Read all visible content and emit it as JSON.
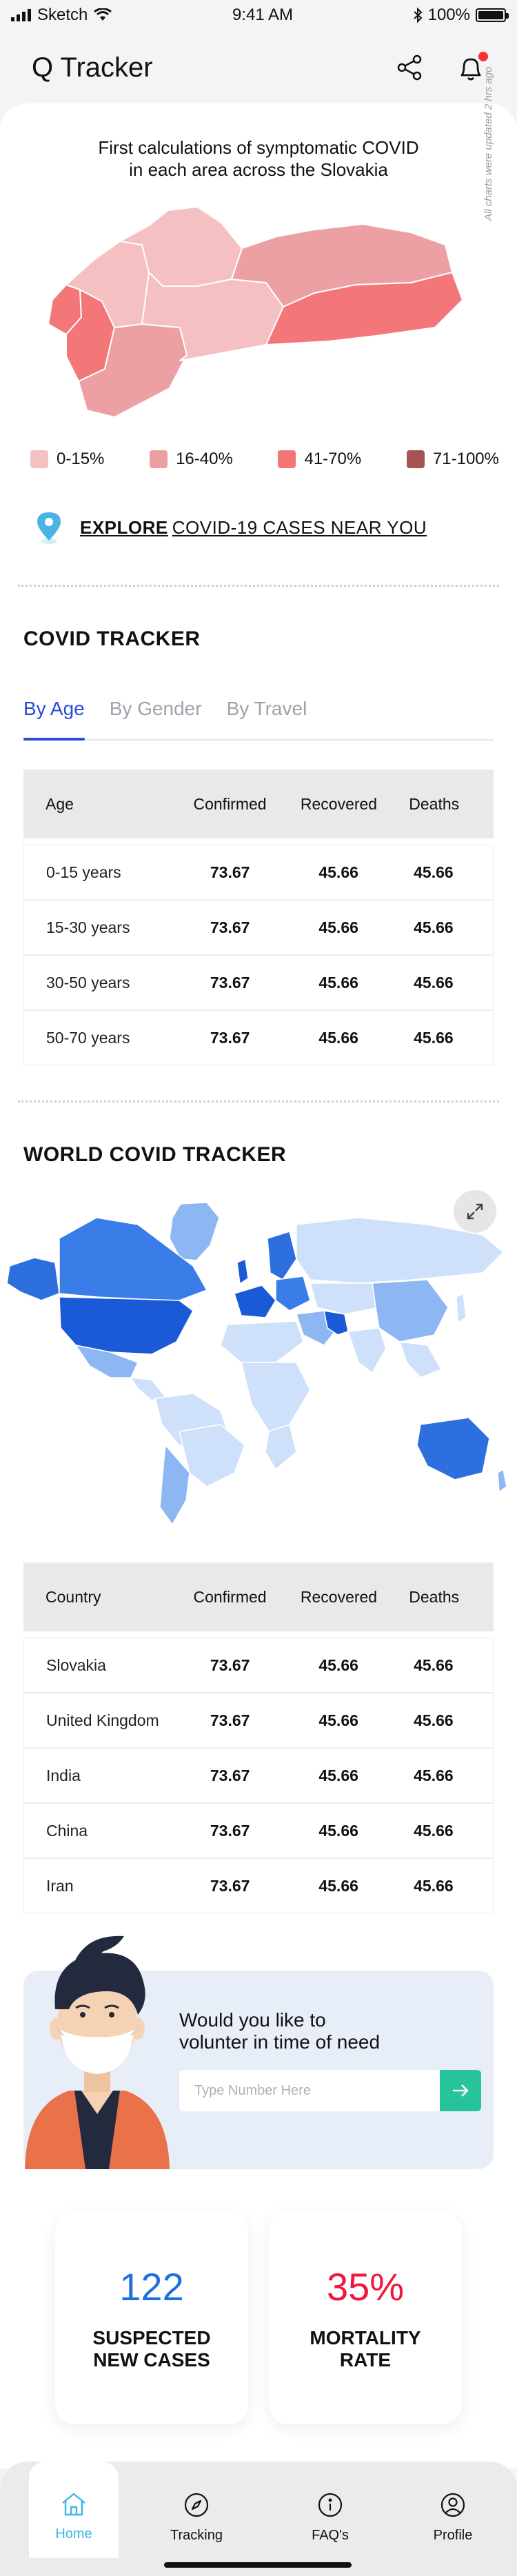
{
  "status_bar": {
    "carrier": "Sketch",
    "time": "9:41 AM",
    "battery": "100%",
    "battery_fraction": 1.0
  },
  "header": {
    "title": "Q Tracker"
  },
  "slovakia": {
    "title_line1": "First calculations of symptomatic COVID",
    "title_line2": "in each area across the Slovakia",
    "update_note": "All charts were updated 2 hrs ago",
    "legend": [
      {
        "label": "0-15%",
        "color": "#f4c0c2"
      },
      {
        "label": "16-40%",
        "color": "#eca0a3"
      },
      {
        "label": "41-70%",
        "color": "#f37779"
      },
      {
        "label": "71-100%",
        "color": "#a65356"
      }
    ]
  },
  "explore": {
    "bold": "EXPLORE",
    "rest": "COVID-19 CASES NEAR YOU"
  },
  "covid_tracker": {
    "title": "COVID TRACKER",
    "tabs": [
      "By Age",
      "By Gender",
      "By Travel"
    ],
    "columns": [
      "Age",
      "Confirmed",
      "Recovered",
      "Deaths"
    ],
    "rows": [
      [
        "0-15 years",
        "73.67",
        "45.66",
        "45.66"
      ],
      [
        "15-30 years",
        "73.67",
        "45.66",
        "45.66"
      ],
      [
        "30-50 years",
        "73.67",
        "45.66",
        "45.66"
      ],
      [
        "50-70 years",
        "73.67",
        "45.66",
        "45.66"
      ]
    ]
  },
  "world_tracker": {
    "title": "WORLD COVID TRACKER",
    "columns": [
      "Country",
      "Confirmed",
      "Recovered",
      "Deaths"
    ],
    "rows": [
      [
        "Slovakia",
        "73.67",
        "45.66",
        "45.66"
      ],
      [
        "United Kingdom",
        "73.67",
        "45.66",
        "45.66"
      ],
      [
        "India",
        "73.67",
        "45.66",
        "45.66"
      ],
      [
        "China",
        "73.67",
        "45.66",
        "45.66"
      ],
      [
        "Iran",
        "73.67",
        "45.66",
        "45.66"
      ]
    ]
  },
  "volunteer": {
    "line1": "Would you like to",
    "line2": "volunter in time of need",
    "placeholder": "Type Number Here"
  },
  "stats": [
    {
      "value": "122",
      "label_line1": "SUSPECTED",
      "label_line2": "NEW CASES",
      "color": "#1e6fe0"
    },
    {
      "value": "35%",
      "label_line1": "MORTALITY",
      "label_line2": "RATE",
      "color": "#f0173f"
    }
  ],
  "nav": [
    {
      "label": "Home",
      "icon": "home-icon"
    },
    {
      "label": "Tracking",
      "icon": "compass-icon"
    },
    {
      "label": "FAQ's",
      "icon": "info-icon"
    },
    {
      "label": "Profile",
      "icon": "profile-icon"
    }
  ]
}
